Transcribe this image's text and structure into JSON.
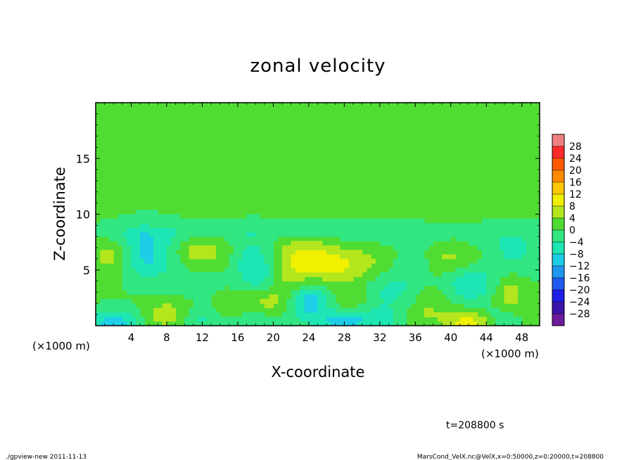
{
  "chart_data": {
    "type": "heatmap",
    "title": "zonal velocity",
    "xlabel": "X-coordinate",
    "ylabel": "Z-coordinate",
    "x_unit": "(×1000 m)",
    "x_unit_right": "(×1000 m)",
    "xlim": [
      0,
      50
    ],
    "ylim": [
      0,
      20
    ],
    "x_ticks": [
      4,
      8,
      12,
      16,
      20,
      24,
      28,
      32,
      36,
      40,
      44,
      48
    ],
    "x_tick_labels": [
      "4",
      "8",
      "12",
      "16",
      "20",
      "24",
      "28",
      "32",
      "36",
      "40",
      "44",
      "48"
    ],
    "y_ticks": [
      5,
      10,
      15
    ],
    "y_tick_labels": [
      "5",
      "10",
      "15"
    ],
    "colorbar": {
      "levels": [
        28,
        24,
        20,
        16,
        12,
        8,
        4,
        0,
        -4,
        -8,
        -12,
        -16,
        -20,
        -24,
        -28
      ],
      "labels": [
        "28",
        "24",
        "20",
        "16",
        "12",
        "8",
        "4",
        "0",
        "−4",
        "−8",
        "−12",
        "−16",
        "−20",
        "−24",
        "−28"
      ],
      "colors": [
        "#f08080",
        "#ff2a2a",
        "#ff5a00",
        "#ff8c00",
        "#ffc800",
        "#f0f000",
        "#b4e61e",
        "#50dc32",
        "#32e682",
        "#1ee6b4",
        "#1ecde6",
        "#1e96f0",
        "#1e5af0",
        "#1e1ee6",
        "#3c14aa",
        "#6a1a9a"
      ]
    },
    "field_description": "Mostly near-zero (green, -4..4) above z=8 km; below z=8 km alternating weak positive (yellow-green, ~4..8) and negative (teal/cyan, ~-4..-12) cells; strongest positive ~8 near x=42, z=0.3; strongest negative ~-12 near x=2, z=0.3 and x=24, z=2.",
    "blobs": [
      {
        "x": 5,
        "z": 6.5,
        "v": -5,
        "sx": 1.6,
        "sz": 1.5
      },
      {
        "x": 2,
        "z": 6.3,
        "v": 6,
        "sx": 1.8,
        "sz": 1.2
      },
      {
        "x": 6.5,
        "z": 6.3,
        "v": -6,
        "sx": 2.5,
        "sz": 1.6
      },
      {
        "x": 11.5,
        "z": 6.6,
        "v": 7,
        "sx": 2.0,
        "sz": 1.1
      },
      {
        "x": 12,
        "z": 4.5,
        "v": -2,
        "sx": 2.5,
        "sz": 1.5
      },
      {
        "x": 15,
        "z": 6.2,
        "v": 3,
        "sx": 1.3,
        "sz": 1.8
      },
      {
        "x": 17,
        "z": 6.0,
        "v": -6,
        "sx": 2.0,
        "sz": 1.6
      },
      {
        "x": 18.5,
        "z": 4.5,
        "v": -5,
        "sx": 1.5,
        "sz": 1.5
      },
      {
        "x": 19,
        "z": 2.2,
        "v": 6,
        "sx": 1.8,
        "sz": 1.0
      },
      {
        "x": 23.5,
        "z": 6.3,
        "v": 8,
        "sx": 2.6,
        "sz": 1.2
      },
      {
        "x": 27,
        "z": 5.3,
        "v": 7,
        "sx": 2.6,
        "sz": 1.0
      },
      {
        "x": 24,
        "z": 2.2,
        "v": -11,
        "sx": 1.6,
        "sz": 1.1
      },
      {
        "x": 22,
        "z": 3.8,
        "v": 4,
        "sx": 1.5,
        "sz": 1.2
      },
      {
        "x": 29,
        "z": 2.5,
        "v": 4,
        "sx": 1.6,
        "sz": 1.0
      },
      {
        "x": 31,
        "z": 5.5,
        "v": 3,
        "sx": 2.0,
        "sz": 1.5
      },
      {
        "x": 33,
        "z": 3.2,
        "v": -6,
        "sx": 2.8,
        "sz": 1.4
      },
      {
        "x": 36,
        "z": 5.7,
        "v": -4,
        "sx": 1.5,
        "sz": 1.2
      },
      {
        "x": 38,
        "z": 2.2,
        "v": 4,
        "sx": 1.8,
        "sz": 1.2
      },
      {
        "x": 40,
        "z": 6.0,
        "v": 5,
        "sx": 2.6,
        "sz": 1.4
      },
      {
        "x": 42,
        "z": 3.8,
        "v": -9,
        "sx": 2.2,
        "sz": 1.2
      },
      {
        "x": 47,
        "z": 6.5,
        "v": -5,
        "sx": 2.4,
        "sz": 1.5
      },
      {
        "x": 46.5,
        "z": 3.0,
        "v": 6,
        "sx": 1.3,
        "sz": 1.2
      },
      {
        "x": 2,
        "z": 0.3,
        "v": -11,
        "sx": 2.0,
        "sz": 0.8
      },
      {
        "x": 8,
        "z": 1.0,
        "v": 7,
        "sx": 1.6,
        "sz": 0.8
      },
      {
        "x": 12,
        "z": 0.5,
        "v": -5,
        "sx": 2.0,
        "sz": 0.8
      },
      {
        "x": 15,
        "z": 1.5,
        "v": 3,
        "sx": 1.3,
        "sz": 0.9
      },
      {
        "x": 18,
        "z": 0.4,
        "v": -5,
        "sx": 1.8,
        "sz": 0.8
      },
      {
        "x": 27.5,
        "z": 0.4,
        "v": -9,
        "sx": 2.2,
        "sz": 0.7
      },
      {
        "x": 32,
        "z": 0.5,
        "v": -6,
        "sx": 2.2,
        "sz": 0.8
      },
      {
        "x": 36,
        "z": 0.8,
        "v": 3,
        "sx": 1.5,
        "sz": 0.8
      },
      {
        "x": 42,
        "z": 0.3,
        "v": 10,
        "sx": 1.8,
        "sz": 0.7
      },
      {
        "x": 45.5,
        "z": 0.6,
        "v": -4,
        "sx": 1.5,
        "sz": 0.8
      },
      {
        "x": 25,
        "z": 8.5,
        "v": -3,
        "sx": 12.0,
        "sz": 0.6
      },
      {
        "x": 40,
        "z": 7.6,
        "v": -2,
        "sx": 8.0,
        "sz": 0.6
      },
      {
        "x": 6,
        "z": 8.2,
        "v": -3,
        "sx": 6.0,
        "sz": 0.7
      }
    ]
  },
  "time_label": "t=208800 s",
  "footer": {
    "left": "./gpview-new  2011-11-13",
    "right": "MarsCond_VelX.nc@VelX,x=0:50000,z=0:20000,t=208800"
  }
}
